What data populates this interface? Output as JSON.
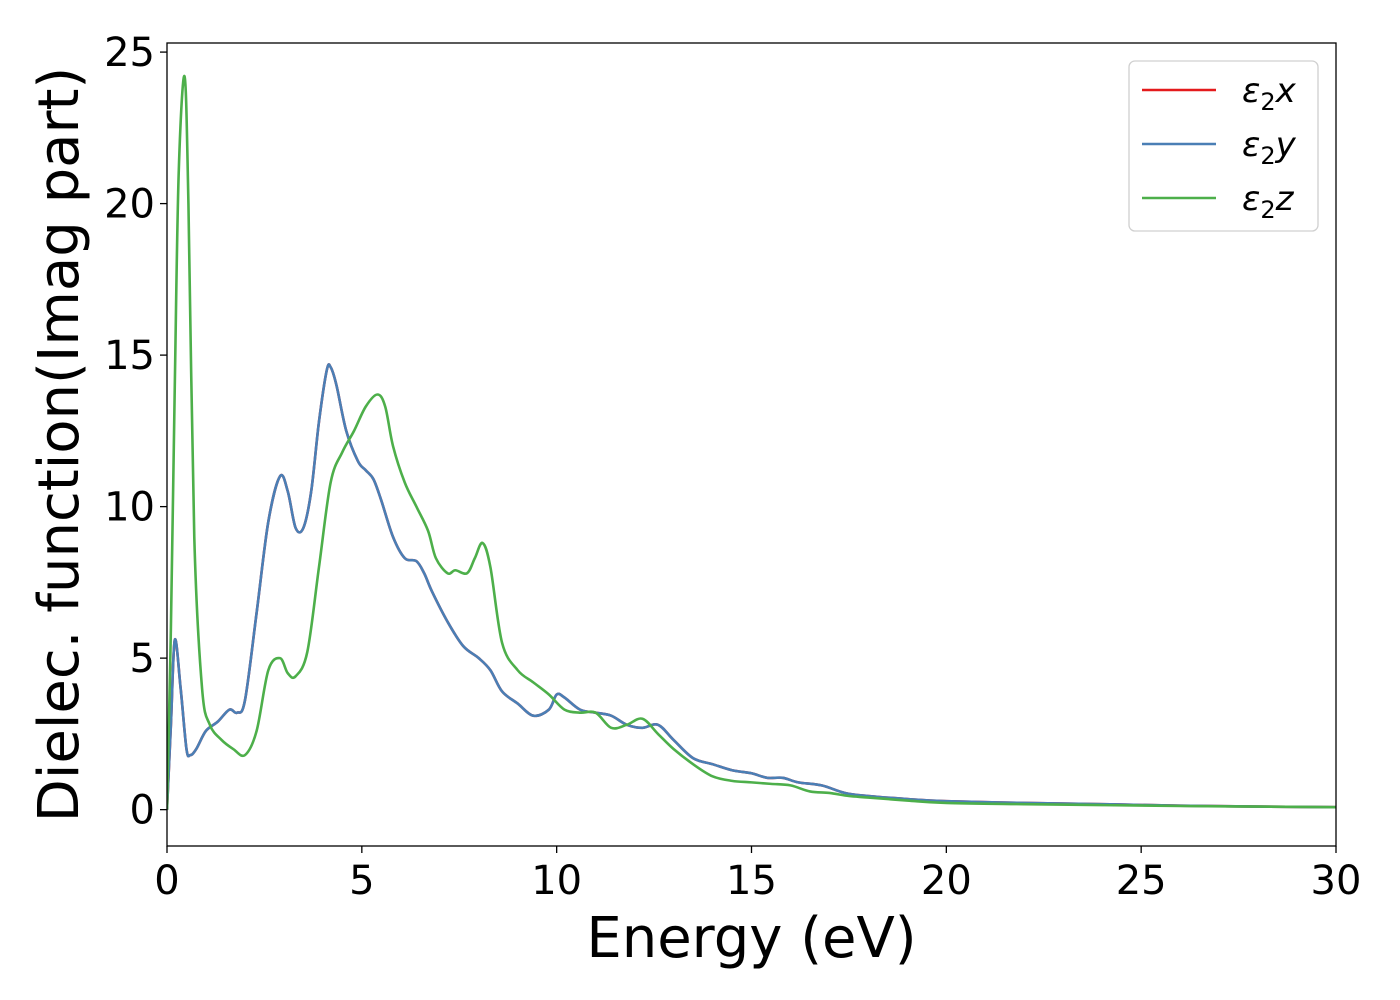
{
  "chart_data": {
    "type": "line",
    "title": "",
    "xlabel": "Energy (eV)",
    "ylabel": "Dielec. function(Imag part)",
    "xlim": [
      0,
      30
    ],
    "ylim": [
      -1.2,
      25.3
    ],
    "xticks": [
      0,
      5,
      10,
      15,
      20,
      25,
      30
    ],
    "yticks": [
      0,
      5,
      10,
      15,
      20,
      25
    ],
    "grid": false,
    "legend_position": "top-right",
    "series": [
      {
        "name": "ε2x",
        "legend_base": "ε",
        "legend_sub": "2",
        "legend_var": "x",
        "color": "#e41a1c",
        "x": [
          0,
          0.1,
          0.2,
          0.35,
          0.5,
          0.6,
          0.75,
          1.0,
          1.3,
          1.6,
          1.8,
          2.0,
          2.3,
          2.6,
          2.9,
          3.1,
          3.3,
          3.5,
          3.7,
          3.9,
          4.1,
          4.2,
          4.35,
          4.6,
          4.9,
          5.1,
          5.3,
          5.5,
          5.8,
          6.1,
          6.4,
          6.6,
          6.8,
          7.2,
          7.6,
          8.0,
          8.3,
          8.6,
          9.0,
          9.4,
          9.8,
          10.0,
          10.2,
          10.6,
          11.0,
          11.4,
          11.8,
          12.2,
          12.6,
          13.0,
          13.5,
          14.0,
          14.5,
          15.0,
          15.4,
          15.8,
          16.2,
          16.8,
          17.4,
          18.0,
          19.0,
          20.0,
          22.0,
          24.0,
          26.0,
          28.0,
          30.0
        ],
        "values": [
          0,
          2.8,
          5.6,
          4.0,
          2.0,
          1.8,
          2.0,
          2.6,
          2.9,
          3.3,
          3.2,
          3.6,
          6.5,
          9.5,
          11.0,
          10.5,
          9.3,
          9.3,
          10.5,
          12.8,
          14.5,
          14.6,
          14.0,
          12.5,
          11.5,
          11.2,
          10.9,
          10.2,
          9.0,
          8.3,
          8.2,
          7.8,
          7.2,
          6.2,
          5.4,
          5.0,
          4.6,
          3.9,
          3.5,
          3.1,
          3.3,
          3.8,
          3.7,
          3.3,
          3.2,
          3.1,
          2.8,
          2.7,
          2.8,
          2.3,
          1.7,
          1.5,
          1.3,
          1.2,
          1.05,
          1.05,
          0.9,
          0.8,
          0.55,
          0.45,
          0.35,
          0.28,
          0.22,
          0.18,
          0.13,
          0.1,
          0.08
        ]
      },
      {
        "name": "ε2y",
        "legend_base": "ε",
        "legend_sub": "2",
        "legend_var": "y",
        "color": "#4a7fb5",
        "x": [
          0,
          0.1,
          0.2,
          0.35,
          0.5,
          0.6,
          0.75,
          1.0,
          1.3,
          1.6,
          1.8,
          2.0,
          2.3,
          2.6,
          2.9,
          3.1,
          3.3,
          3.5,
          3.7,
          3.9,
          4.1,
          4.2,
          4.35,
          4.6,
          4.9,
          5.1,
          5.3,
          5.5,
          5.8,
          6.1,
          6.4,
          6.6,
          6.8,
          7.2,
          7.6,
          8.0,
          8.3,
          8.6,
          9.0,
          9.4,
          9.8,
          10.0,
          10.2,
          10.6,
          11.0,
          11.4,
          11.8,
          12.2,
          12.6,
          13.0,
          13.5,
          14.0,
          14.5,
          15.0,
          15.4,
          15.8,
          16.2,
          16.8,
          17.4,
          18.0,
          19.0,
          20.0,
          22.0,
          24.0,
          26.0,
          28.0,
          30.0
        ],
        "values": [
          0,
          2.8,
          5.6,
          4.0,
          2.0,
          1.8,
          2.0,
          2.6,
          2.9,
          3.3,
          3.2,
          3.6,
          6.5,
          9.5,
          11.0,
          10.5,
          9.3,
          9.3,
          10.5,
          12.8,
          14.5,
          14.6,
          14.0,
          12.5,
          11.5,
          11.2,
          10.9,
          10.2,
          9.0,
          8.3,
          8.2,
          7.8,
          7.2,
          6.2,
          5.4,
          5.0,
          4.6,
          3.9,
          3.5,
          3.1,
          3.3,
          3.8,
          3.7,
          3.3,
          3.2,
          3.1,
          2.8,
          2.7,
          2.8,
          2.3,
          1.7,
          1.5,
          1.3,
          1.2,
          1.05,
          1.05,
          0.9,
          0.8,
          0.55,
          0.45,
          0.35,
          0.28,
          0.22,
          0.18,
          0.13,
          0.1,
          0.08
        ]
      },
      {
        "name": "ε2z",
        "legend_base": "ε",
        "legend_sub": "2",
        "legend_var": "z",
        "color": "#4daf4a",
        "x": [
          0,
          0.1,
          0.2,
          0.3,
          0.45,
          0.55,
          0.7,
          0.9,
          1.1,
          1.4,
          1.7,
          2.0,
          2.3,
          2.6,
          2.9,
          3.1,
          3.3,
          3.6,
          3.9,
          4.2,
          4.5,
          4.8,
          5.1,
          5.4,
          5.6,
          5.8,
          6.1,
          6.4,
          6.7,
          6.9,
          7.2,
          7.4,
          7.7,
          7.9,
          8.1,
          8.3,
          8.6,
          9.0,
          9.4,
          9.8,
          10.2,
          10.6,
          11.0,
          11.4,
          11.8,
          12.2,
          12.6,
          13.0,
          13.5,
          14.0,
          14.5,
          15.0,
          15.5,
          16.0,
          16.5,
          17.0,
          17.5,
          18.0,
          19.0,
          20.0,
          22.0,
          24.0,
          26.0,
          28.0,
          30.0
        ],
        "values": [
          0,
          6.0,
          14.0,
          21.0,
          24.2,
          20.0,
          9.0,
          4.0,
          2.8,
          2.3,
          2.0,
          1.8,
          2.6,
          4.6,
          5.0,
          4.5,
          4.4,
          5.2,
          8.0,
          10.8,
          11.8,
          12.5,
          13.3,
          13.7,
          13.3,
          12.0,
          10.8,
          10.0,
          9.2,
          8.3,
          7.8,
          7.9,
          7.8,
          8.3,
          8.8,
          8.0,
          5.5,
          4.6,
          4.2,
          3.8,
          3.3,
          3.2,
          3.2,
          2.7,
          2.8,
          3.0,
          2.5,
          2.0,
          1.5,
          1.1,
          0.95,
          0.9,
          0.85,
          0.8,
          0.6,
          0.55,
          0.45,
          0.4,
          0.3,
          0.22,
          0.18,
          0.15,
          0.12,
          0.1,
          0.08
        ]
      }
    ]
  }
}
